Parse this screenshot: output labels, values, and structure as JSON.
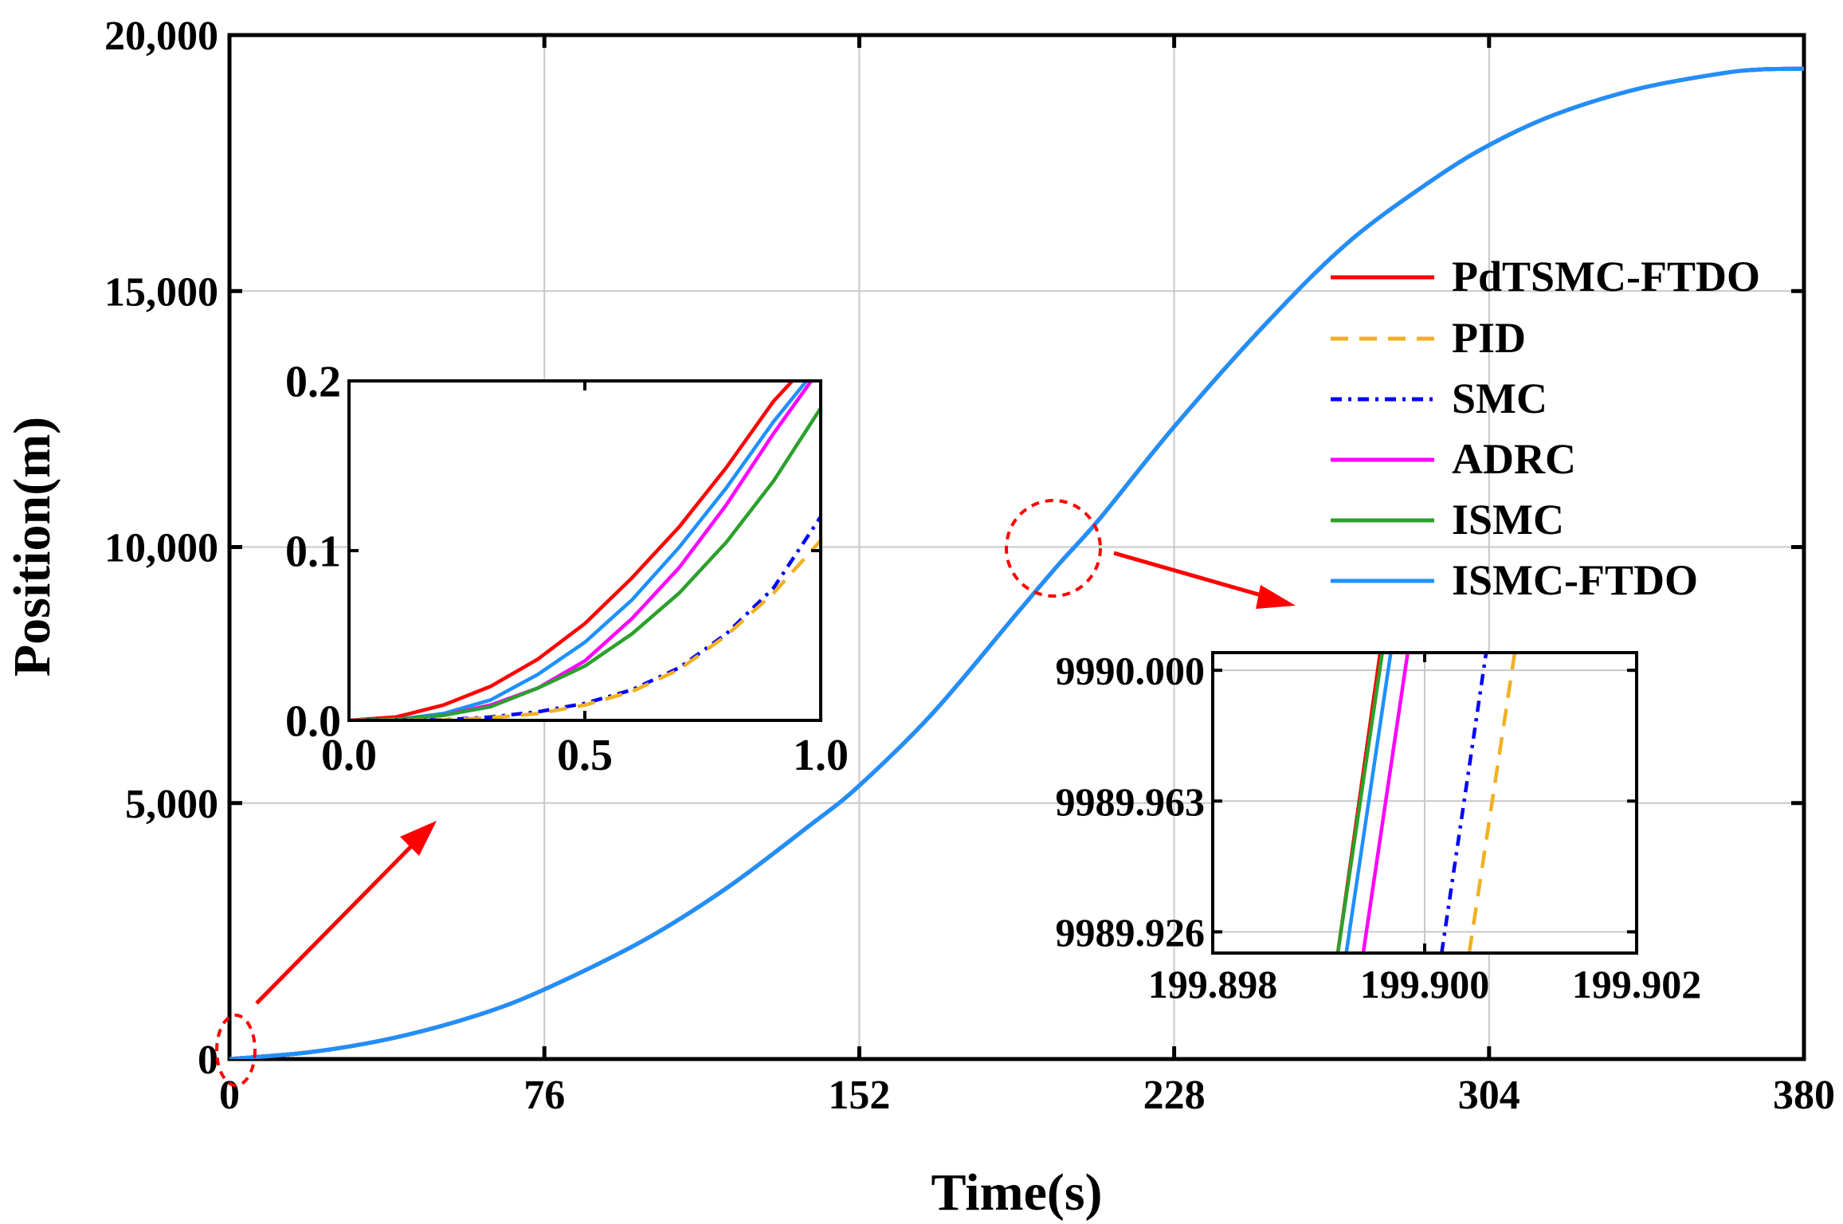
{
  "chart_data": {
    "type": "line",
    "xlabel": "Time(s)",
    "ylabel": "Position(m)",
    "xlim": [
      0,
      380
    ],
    "ylim": [
      0,
      20000
    ],
    "xticks": [
      0,
      76,
      152,
      228,
      304,
      380
    ],
    "yticks": [
      0,
      5000,
      10000,
      15000,
      20000
    ],
    "xtick_labels": [
      "0",
      "76",
      "152",
      "228",
      "304",
      "380"
    ],
    "ytick_labels": [
      "0",
      "5,000",
      "10,000",
      "15,000",
      "20,000"
    ],
    "grid": true,
    "legend_position": "right-center",
    "series": [
      {
        "name": "PdTSMC-FTDO",
        "color": "#ff0000",
        "dash": "solid"
      },
      {
        "name": "PID",
        "color": "#f0b020",
        "dash": "dashed"
      },
      {
        "name": "SMC",
        "color": "#0000ff",
        "dash": "dashdot"
      },
      {
        "name": "ADRC",
        "color": "#ff00ff",
        "dash": "solid"
      },
      {
        "name": "ISMC",
        "color": "#2ca02c",
        "dash": "solid"
      },
      {
        "name": "ISMC-FTDO",
        "color": "#1e90ff",
        "dash": "solid"
      }
    ],
    "main_curve": {
      "x": [
        0,
        20,
        40,
        60,
        76,
        100,
        120,
        140,
        152,
        170,
        190,
        200,
        210,
        228,
        250,
        270,
        290,
        304,
        320,
        340,
        360,
        370,
        380
      ],
      "y": [
        0,
        140,
        420,
        860,
        1360,
        2320,
        3340,
        4560,
        5340,
        6780,
        8700,
        9650,
        10550,
        12350,
        14350,
        15950,
        17150,
        17850,
        18450,
        18950,
        19250,
        19330,
        19340
      ]
    },
    "insets": [
      {
        "name": "inset-start",
        "xlim": [
          0,
          1
        ],
        "ylim": [
          0,
          0.2
        ],
        "xticks": [
          0,
          0.5,
          1
        ],
        "yticks": [
          0,
          0.1,
          0.2
        ],
        "xtick_labels": [
          "0.0",
          "0.5",
          "1.0"
        ],
        "ytick_labels": [
          "0.0",
          "0.1",
          "0.2"
        ],
        "series": [
          {
            "name": "PdTSMC-FTDO",
            "x": [
              0,
              0.1,
              0.2,
              0.3,
              0.4,
              0.5,
              0.6,
              0.7,
              0.8,
              0.9,
              0.94
            ],
            "y": [
              0,
              0.002,
              0.009,
              0.02,
              0.036,
              0.057,
              0.084,
              0.114,
              0.149,
              0.188,
              0.2
            ]
          },
          {
            "name": "ISMC-FTDO",
            "x": [
              0,
              0.1,
              0.2,
              0.3,
              0.4,
              0.5,
              0.6,
              0.7,
              0.8,
              0.9,
              0.97
            ],
            "y": [
              0,
              0.0005,
              0.004,
              0.012,
              0.027,
              0.046,
              0.071,
              0.102,
              0.137,
              0.176,
              0.2
            ]
          },
          {
            "name": "ADRC",
            "x": [
              0,
              0.1,
              0.2,
              0.3,
              0.4,
              0.5,
              0.6,
              0.7,
              0.8,
              0.9,
              0.98
            ],
            "y": [
              0,
              0.0005,
              0.003,
              0.009,
              0.019,
              0.035,
              0.06,
              0.09,
              0.127,
              0.169,
              0.2
            ]
          },
          {
            "name": "ISMC",
            "x": [
              0,
              0.1,
              0.2,
              0.3,
              0.4,
              0.5,
              0.6,
              0.7,
              0.8,
              0.9,
              1.0
            ],
            "y": [
              0,
              0.0005,
              0.003,
              0.008,
              0.019,
              0.032,
              0.051,
              0.075,
              0.105,
              0.141,
              0.184
            ]
          },
          {
            "name": "SMC",
            "x": [
              0,
              0.2,
              0.3,
              0.4,
              0.5,
              0.6,
              0.7,
              0.8,
              0.9,
              1.0
            ],
            "y": [
              0,
              0.0003,
              0.002,
              0.005,
              0.01,
              0.018,
              0.031,
              0.051,
              0.078,
              0.12
            ]
          },
          {
            "name": "PID",
            "x": [
              0,
              0.2,
              0.3,
              0.4,
              0.5,
              0.6,
              0.7,
              0.8,
              0.9,
              1.0
            ],
            "y": [
              0,
              0.0002,
              0.0015,
              0.004,
              0.009,
              0.017,
              0.03,
              0.05,
              0.075,
              0.106
            ]
          }
        ]
      },
      {
        "name": "inset-mid",
        "xlim": [
          199.898,
          199.902
        ],
        "ylim": [
          9989.92,
          9990.005
        ],
        "xticks": [
          199.898,
          199.9,
          199.902
        ],
        "yticks": [
          9989.926,
          9989.963,
          9990.0
        ],
        "xtick_labels": [
          "199.898",
          "199.900",
          "199.902"
        ],
        "ytick_labels": [
          "9989.926",
          "9989.963",
          "9990.000"
        ],
        "series": [
          {
            "name": "PdTSMC-FTDO",
            "x": [
              199.89918,
              199.89958
            ],
            "y": [
              9989.92,
              9990.005
            ]
          },
          {
            "name": "ISMC",
            "x": [
              199.89918,
              199.8996
            ],
            "y": [
              9989.92,
              9990.005
            ]
          },
          {
            "name": "ISMC-FTDO",
            "x": [
              199.89926,
              199.89968
            ],
            "y": [
              9989.92,
              9990.005
            ]
          },
          {
            "name": "ADRC",
            "x": [
              199.89942,
              199.89984
            ],
            "y": [
              9989.92,
              9990.005
            ]
          },
          {
            "name": "SMC",
            "x": [
              199.90016,
              199.90058
            ],
            "y": [
              9989.92,
              9990.005
            ]
          },
          {
            "name": "PID",
            "x": [
              199.90042,
              199.90085
            ],
            "y": [
              9989.92,
              9990.005
            ]
          }
        ]
      }
    ]
  }
}
